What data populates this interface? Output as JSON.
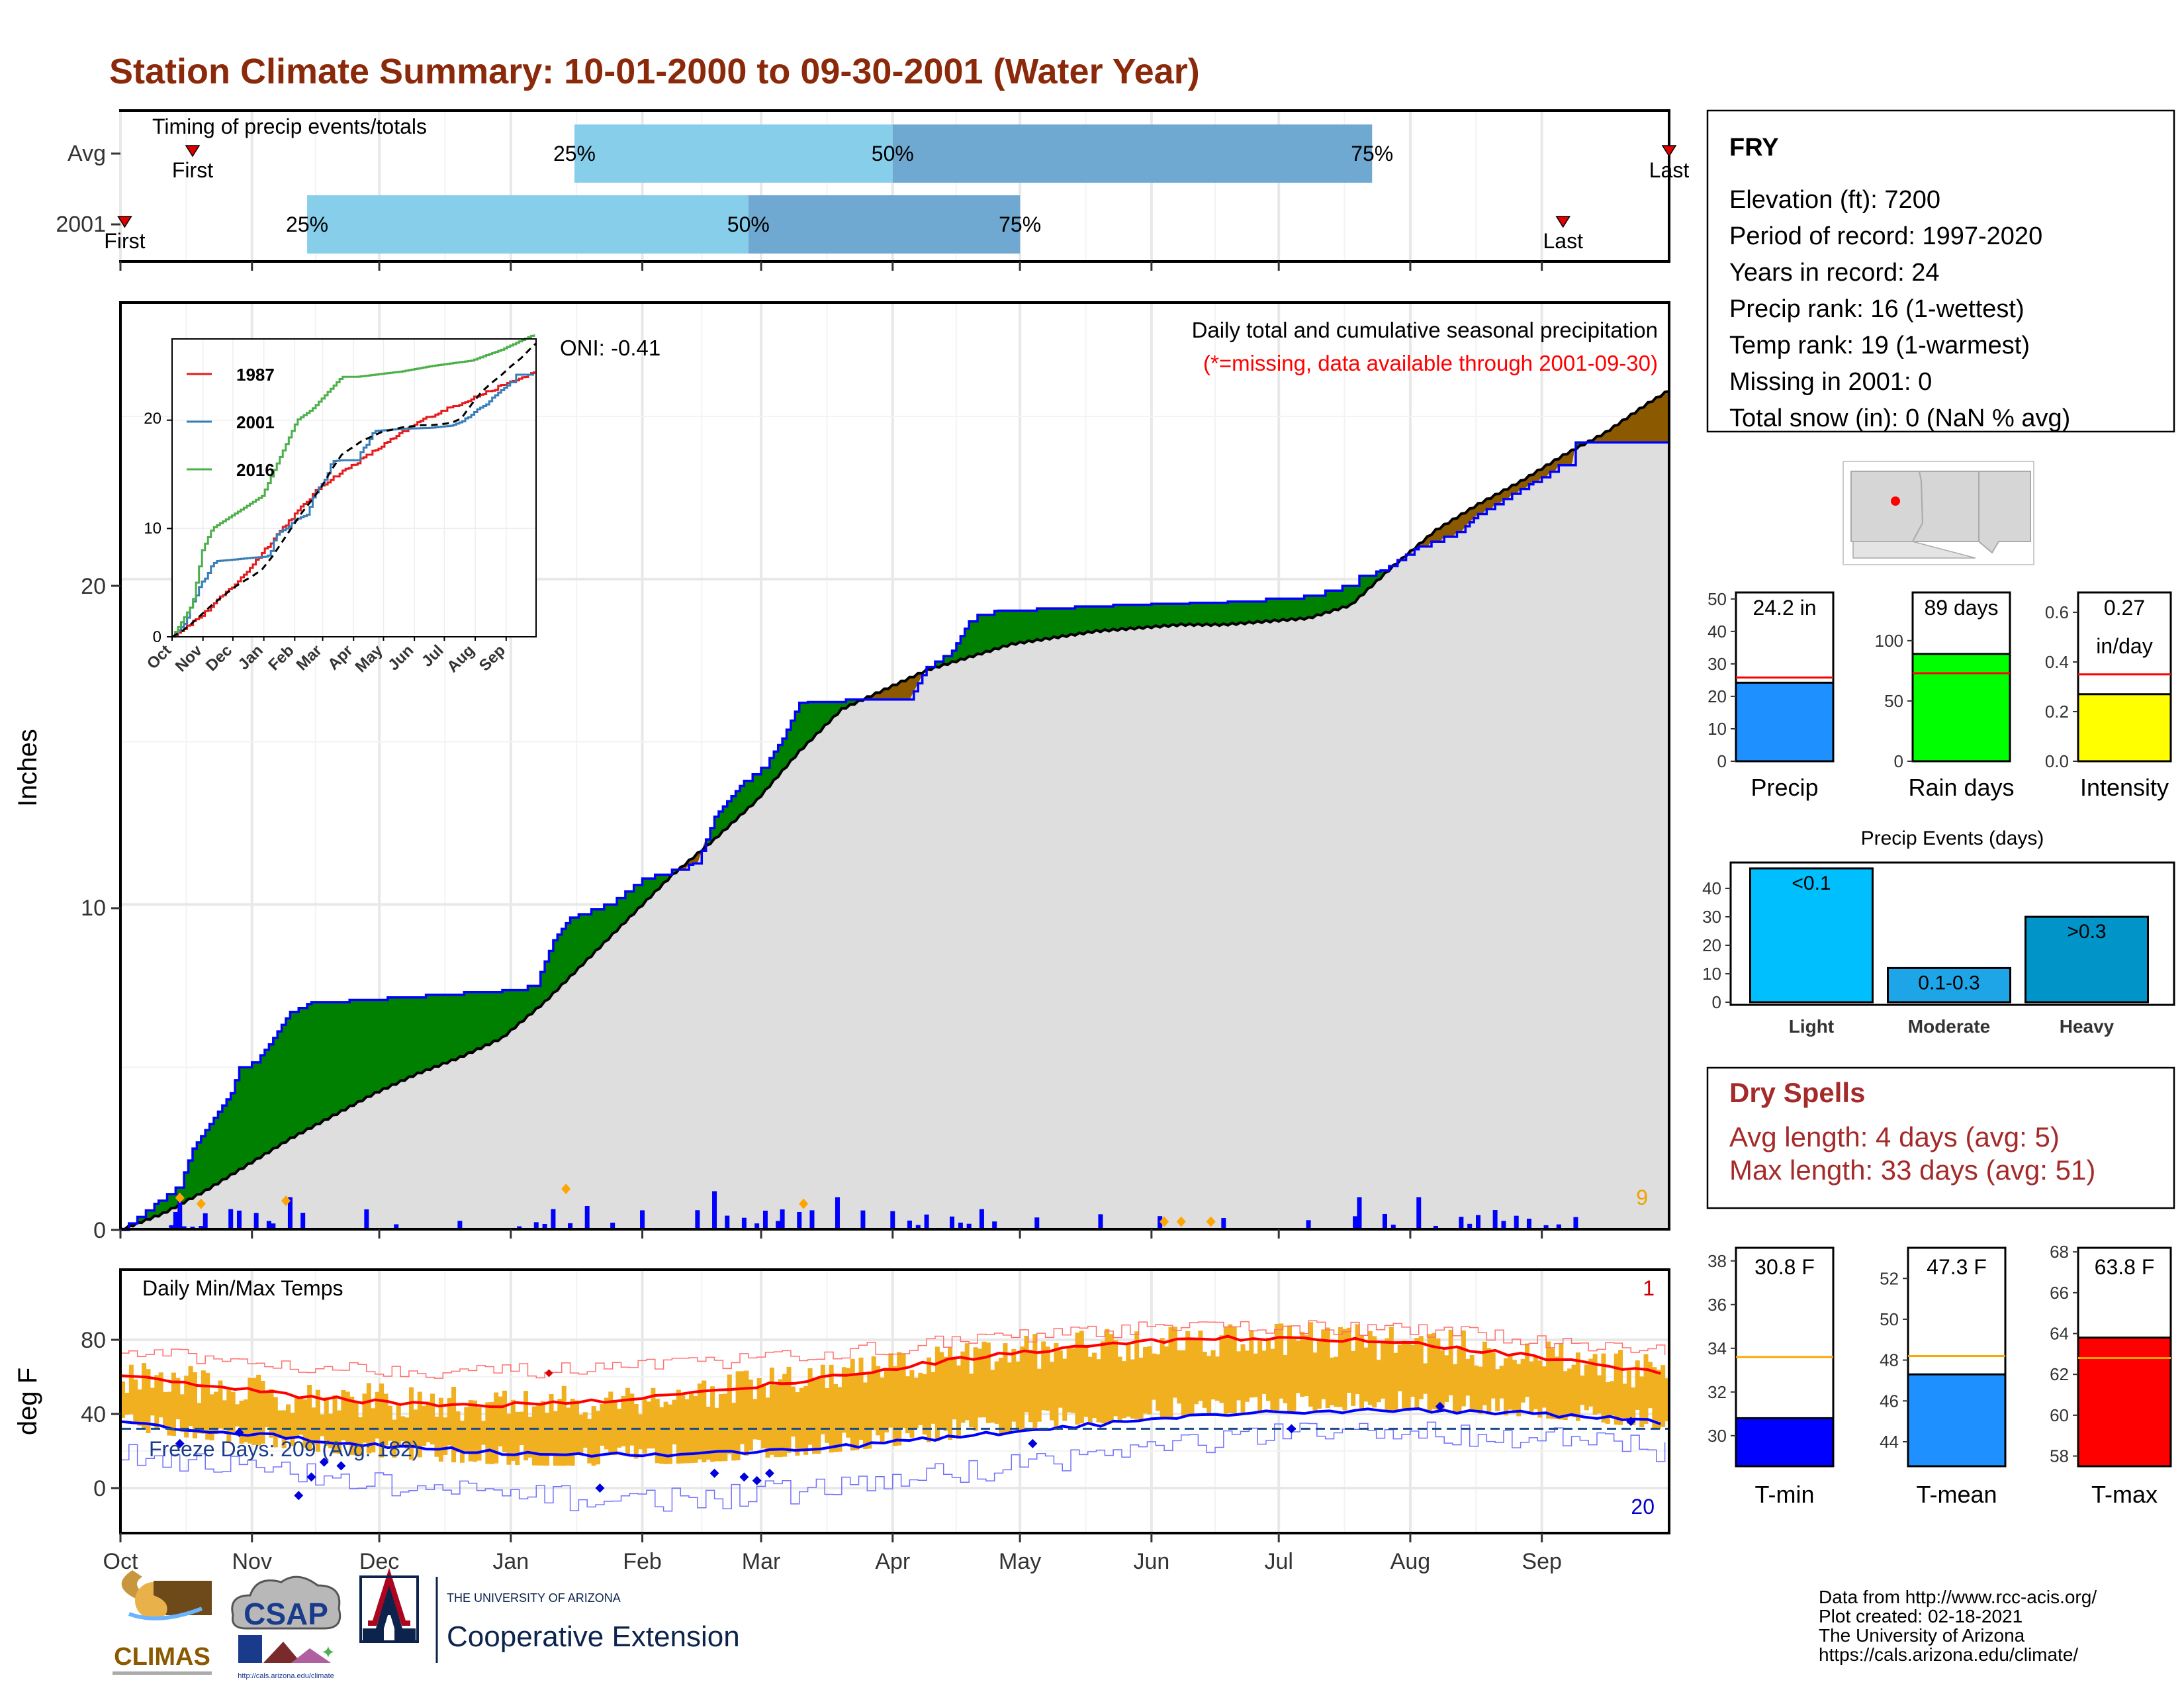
{
  "title": "Station Climate Summary: 10-01-2000 to 09-30-2001 (Water Year)",
  "colors": {
    "title": "#8b2a0b",
    "green_fill": "#008000",
    "brown_fill": "#8b5a00",
    "grey_fill": "#dedede",
    "blue": "#0000ff",
    "red": "#ff0000",
    "orange": "#f0b020",
    "light_blue_bar": "#87ceeb",
    "mid_blue_bar": "#6fa8d0",
    "dry_spell_text": "#a52a2a"
  },
  "timing": {
    "label": "Timing of precip events/totals",
    "rows": [
      {
        "name": "Avg",
        "first_label": "First",
        "last_label": "Last",
        "q25_label": "25%",
        "q50_label": "50%",
        "q75_label": "75%",
        "first_day": 17,
        "q25_day": 107,
        "q50_day": 182,
        "q75_day": 295,
        "last_day": 365
      },
      {
        "name": "2001",
        "first_label": "First",
        "last_label": "Last",
        "q25_label": "25%",
        "q50_label": "50%",
        "q75_label": "75%",
        "first_day": 1,
        "q25_day": 44,
        "q50_day": 148,
        "q75_day": 212,
        "last_day": 340
      }
    ]
  },
  "precip_panel": {
    "ylabel": "Inches",
    "yticks": [
      "0",
      "10",
      "20"
    ],
    "title": "Daily total and cumulative seasonal precipitation",
    "subtitle": "(*=missing, data available through 2001-09-30)",
    "oni": "ONI: -0.41",
    "corner_count": "9"
  },
  "inset": {
    "yticks": [
      "0",
      "10",
      "20"
    ],
    "xticks": [
      "Oct",
      "Nov",
      "Dec",
      "Jan",
      "Feb",
      "Mar",
      "Apr",
      "May",
      "Jun",
      "Jul",
      "Aug",
      "Sep"
    ],
    "legend": [
      {
        "name": "1987",
        "color": "#e41a1c"
      },
      {
        "name": "2001",
        "color": "#377eb8"
      },
      {
        "name": "2016",
        "color": "#4daf4a"
      }
    ]
  },
  "temp_panel": {
    "title": "Daily Min/Max Temps",
    "ylabel": "deg F",
    "yticks": [
      "0",
      "40",
      "80"
    ],
    "freeze_label": "Freeze Days: 209 (Avg: 182)",
    "count_high": "1",
    "count_low": "20"
  },
  "x_months": [
    "Oct",
    "Nov",
    "Dec",
    "Jan",
    "Feb",
    "Mar",
    "Apr",
    "May",
    "Jun",
    "Jul",
    "Aug",
    "Sep"
  ],
  "station": {
    "name": "FRY",
    "lines": [
      "Elevation (ft): 7200",
      "Period of record: 1997-2020",
      "Years in record: 24",
      "Precip rank: 16 (1-wettest)",
      "Temp rank: 19 (1-warmest)",
      "Missing in 2001: 0",
      "Total snow (in): 0 (NaN % avg)"
    ]
  },
  "summary_bars": [
    {
      "name": "Precip",
      "label": "24.2 in",
      "value": 24.2,
      "avg": 25.8,
      "ymax": 52,
      "ticks": [
        "0",
        "10",
        "20",
        "30",
        "40",
        "50"
      ],
      "color": "#1e90ff"
    },
    {
      "name": "Rain days",
      "label": "89 days",
      "value": 89,
      "avg": 73,
      "ymax": 140,
      "ticks": [
        "0",
        "50",
        "100"
      ],
      "color": "#00ff00"
    },
    {
      "name": "Intensity",
      "label": "0.27",
      "label2": "in/day",
      "value": 0.27,
      "avg": 0.35,
      "ymax": 0.68,
      "ticks": [
        "0.0",
        "0.2",
        "0.4",
        "0.6"
      ],
      "color": "#ffff00"
    }
  ],
  "events": {
    "title": "Precip Events (days)",
    "ticks": [
      "0",
      "10",
      "20",
      "30",
      "40"
    ],
    "bars": [
      {
        "name": "Light",
        "label": "<0.1",
        "value": 47,
        "color": "#00bfff"
      },
      {
        "name": "Moderate",
        "label": "0.1-0.3",
        "value": 12,
        "color": "#1ea5e8"
      },
      {
        "name": "Heavy",
        "label": ">0.3",
        "value": 30,
        "color": "#0094c8"
      }
    ]
  },
  "dry_spells": {
    "title": "Dry Spells",
    "avg_line": "Avg length: 4 days (avg: 5)",
    "max_line": "Max length: 33 days (avg: 51)"
  },
  "temp_bars": [
    {
      "name": "T-min",
      "label": "30.8 F",
      "value": 30.8,
      "avg": 33.6,
      "ymin": 28.6,
      "ymax": 38.6,
      "ticks": [
        "30",
        "32",
        "34",
        "36",
        "38"
      ],
      "color": "#0000ff"
    },
    {
      "name": "T-mean",
      "label": "47.3 F",
      "value": 47.3,
      "avg": 48.2,
      "ymin": 42.8,
      "ymax": 53.5,
      "ticks": [
        "44",
        "46",
        "48",
        "50",
        "52"
      ],
      "color": "#1e90ff"
    },
    {
      "name": "T-max",
      "label": "63.8 F",
      "value": 63.8,
      "avg": 62.8,
      "ymin": 57.5,
      "ymax": 68.2,
      "ticks": [
        "58",
        "60",
        "62",
        "64",
        "66",
        "68"
      ],
      "color": "#ff0000"
    }
  ],
  "footer": {
    "logos": [
      "CLIMAS",
      "CSAP"
    ],
    "ua_small": "THE UNIVERSITY OF ARIZONA",
    "ua_big": "Cooperative Extension",
    "csap_url": "http://cals.arizona.edu/climate",
    "credits": [
      "Data from http://www.rcc-acis.org/",
      "Plot created: 02-18-2021",
      "The University of Arizona",
      "https://cals.arizona.edu/climate/"
    ]
  },
  "chart_data": {
    "type": "area",
    "title": "Daily total and cumulative seasonal precipitation",
    "ylabel": "Inches",
    "ylim": [
      0,
      28.5
    ],
    "x_label_months": [
      "Oct",
      "Nov",
      "Dec",
      "Jan",
      "Feb",
      "Mar",
      "Apr",
      "May",
      "Jun",
      "Jul",
      "Aug",
      "Sep"
    ],
    "series": [
      {
        "name": "2001 cumulative",
        "points": [
          [
            0,
            0
          ],
          [
            14,
            1.4
          ],
          [
            17,
            2.5
          ],
          [
            26,
            4.2
          ],
          [
            28,
            5.0
          ],
          [
            32,
            5.2
          ],
          [
            35,
            5.7
          ],
          [
            40,
            6.7
          ],
          [
            45,
            7.0
          ],
          [
            58,
            7.1
          ],
          [
            80,
            7.3
          ],
          [
            94,
            7.4
          ],
          [
            98,
            7.6
          ],
          [
            102,
            8.9
          ],
          [
            106,
            9.6
          ],
          [
            116,
            10.1
          ],
          [
            123,
            10.8
          ],
          [
            136,
            11.3
          ],
          [
            140,
            12.7
          ],
          [
            147,
            13.8
          ],
          [
            152,
            14.3
          ],
          [
            156,
            15.1
          ],
          [
            160,
            16.2
          ],
          [
            169,
            16.3
          ],
          [
            186,
            16.3
          ],
          [
            188,
            16.8
          ],
          [
            190,
            17.3
          ],
          [
            196,
            17.8
          ],
          [
            200,
            18.7
          ],
          [
            203,
            19.0
          ],
          [
            216,
            19.1
          ],
          [
            231,
            19.2
          ],
          [
            260,
            19.3
          ],
          [
            280,
            19.5
          ],
          [
            291,
            19.9
          ],
          [
            292,
            20.1
          ],
          [
            298,
            20.3
          ],
          [
            300,
            20.5
          ],
          [
            306,
            21.0
          ],
          [
            316,
            21.5
          ],
          [
            320,
            22.0
          ],
          [
            324,
            22.3
          ],
          [
            329,
            22.7
          ],
          [
            336,
            23.2
          ],
          [
            339,
            23.5
          ],
          [
            342,
            23.5
          ],
          [
            343,
            24.2
          ],
          [
            365,
            24.2
          ]
        ]
      },
      {
        "name": "average cumulative",
        "points": [
          [
            0,
            0
          ],
          [
            10,
            0.5
          ],
          [
            20,
            1.2
          ],
          [
            30,
            2.0
          ],
          [
            40,
            2.8
          ],
          [
            50,
            3.5
          ],
          [
            60,
            4.2
          ],
          [
            70,
            4.8
          ],
          [
            80,
            5.3
          ],
          [
            90,
            5.9
          ],
          [
            100,
            7.0
          ],
          [
            110,
            8.3
          ],
          [
            120,
            9.6
          ],
          [
            130,
            10.9
          ],
          [
            140,
            12.0
          ],
          [
            150,
            13.2
          ],
          [
            160,
            14.7
          ],
          [
            170,
            16.0
          ],
          [
            180,
            16.6
          ],
          [
            190,
            17.2
          ],
          [
            200,
            17.6
          ],
          [
            210,
            18.0
          ],
          [
            220,
            18.2
          ],
          [
            230,
            18.4
          ],
          [
            240,
            18.5
          ],
          [
            250,
            18.6
          ],
          [
            260,
            18.6
          ],
          [
            270,
            18.7
          ],
          [
            280,
            18.8
          ],
          [
            290,
            19.2
          ],
          [
            300,
            20.4
          ],
          [
            310,
            21.5
          ],
          [
            320,
            22.3
          ],
          [
            330,
            23.0
          ],
          [
            340,
            23.8
          ],
          [
            350,
            24.5
          ],
          [
            360,
            25.4
          ],
          [
            365,
            25.8
          ]
        ]
      }
    ],
    "daily_precip_peak_inches": 1.2,
    "temp_ylim": [
      -20,
      100
    ]
  }
}
